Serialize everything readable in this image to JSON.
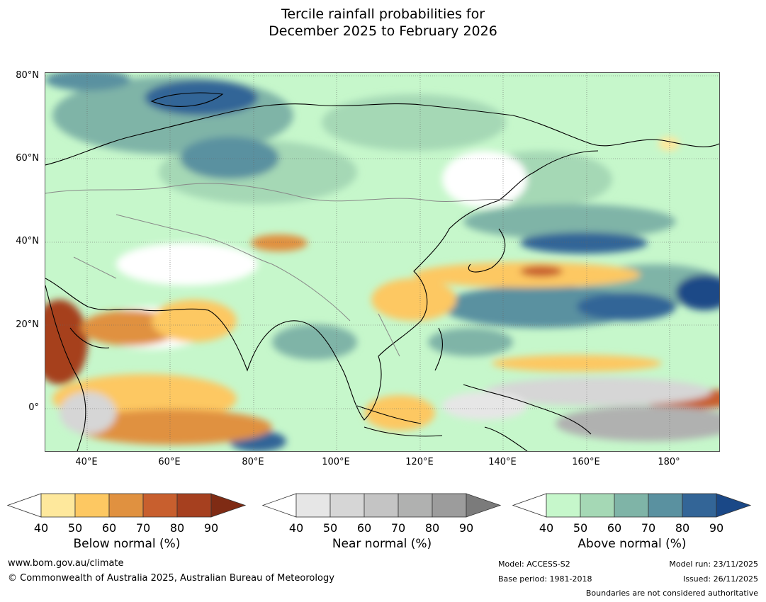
{
  "title_line1": "Tercile rainfall probabilities for",
  "title_line2": "December 2025 to February 2026",
  "lat_labels": [
    "80°N",
    "60°N",
    "40°N",
    "20°N",
    "0°"
  ],
  "lon_labels": [
    "40°E",
    "60°E",
    "80°E",
    "100°E",
    "120°E",
    "140°E",
    "160°E",
    "180°"
  ],
  "colorbars": [
    {
      "title": "Below normal (%)",
      "ticks": [
        "40",
        "50",
        "60",
        "70",
        "80",
        "90"
      ],
      "colors": [
        "#ffffff",
        "#fee89c",
        "#fdc862",
        "#e09140",
        "#c85f2e",
        "#a6401f",
        "#7f2b14"
      ]
    },
    {
      "title": "Near normal (%)",
      "ticks": [
        "40",
        "50",
        "60",
        "70",
        "80",
        "90"
      ],
      "colors": [
        "#ffffff",
        "#e6e6e6",
        "#d6d6d6",
        "#c4c4c4",
        "#b0b1b0",
        "#9c9c9c",
        "#7b7b7b"
      ]
    },
    {
      "title": "Above normal (%)",
      "ticks": [
        "40",
        "50",
        "60",
        "70",
        "80",
        "90"
      ],
      "colors": [
        "#ffffff",
        "#c6f7cb",
        "#a5d8b5",
        "#7fb4a7",
        "#5a91a0",
        "#336597",
        "#1a4887"
      ]
    }
  ],
  "footer": {
    "website": "www.bom.gov.au/climate",
    "copyright": "© Commonwealth of Australia 2025, Australian Bureau of Meteorology",
    "model": "Model: ACCESS-S2",
    "base_period": "Base period: 1981-2018",
    "model_run": "Model run: 23/11/2025",
    "issued": "Issued: 26/11/2025",
    "disclaimer": "Boundaries are not considered authoritative"
  }
}
